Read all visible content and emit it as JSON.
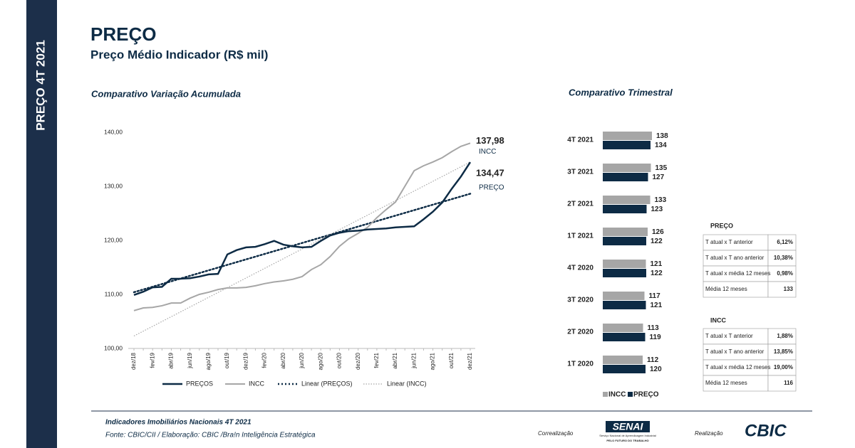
{
  "sidebar": "PREÇO 4T 2021",
  "header": {
    "title": "PREÇO",
    "subtitle": "Preço Médio Indicador (R$ mil)"
  },
  "chart_data": [
    {
      "type": "line",
      "title": "Comparativo Variação Acumulada",
      "categories": [
        "dez/18",
        null,
        "fev/19",
        null,
        "abr/19",
        null,
        "jun/19",
        null,
        "ago/19",
        null,
        "out/19",
        null,
        "dez/19",
        null,
        "fev/20",
        null,
        "abr/20",
        null,
        "jun/20",
        null,
        "ago/20",
        null,
        "out/20",
        null,
        "dez/20",
        null,
        "fev/21",
        null,
        "abr/21",
        null,
        "jun/21",
        null,
        "ago/21",
        null,
        "out/21",
        null,
        "dez/21"
      ],
      "series": [
        {
          "name": "PREÇOS",
          "color": "#0d2b45",
          "values": [
            109.9,
            110.5,
            111.3,
            111.4,
            112.9,
            112.9,
            113.0,
            113.3,
            113.7,
            113.8,
            117.4,
            118.2,
            118.7,
            118.8,
            119.3,
            119.9,
            119.2,
            118.9,
            118.7,
            118.8,
            119.9,
            120.9,
            121.4,
            121.7,
            121.8,
            122.0,
            122.1,
            122.2,
            122.4,
            122.5,
            122.6,
            123.9,
            125.3,
            127.0,
            129.5,
            131.8,
            134.47
          ]
        },
        {
          "name": "INCC",
          "color": "#a6a6a6",
          "values": [
            107.0,
            107.5,
            107.6,
            107.9,
            108.4,
            108.4,
            109.3,
            110.0,
            110.4,
            110.9,
            111.2,
            111.2,
            111.3,
            111.6,
            112.0,
            112.3,
            112.5,
            112.8,
            113.3,
            114.6,
            115.5,
            117.0,
            118.9,
            120.3,
            121.3,
            122.4,
            124.2,
            125.7,
            127.1,
            130.0,
            132.9,
            133.8,
            134.5,
            135.3,
            136.4,
            137.4,
            137.98
          ]
        }
      ],
      "trendlines": [
        {
          "name": "Linear (PREÇOS)",
          "series": 0,
          "color": "#0d2b45"
        },
        {
          "name": "Linear (INCC)",
          "series": 1,
          "color": "#a6a6a6"
        }
      ],
      "annotations": [
        {
          "label": "137,98",
          "text": "INCC",
          "series": 1
        },
        {
          "label": "134,47",
          "text": "PREÇO",
          "series": 0
        }
      ],
      "ylim": [
        100,
        140
      ],
      "yticks": [
        {
          "value": 100,
          "label": "100,00"
        },
        {
          "value": 110,
          "label": "110,00"
        },
        {
          "value": 120,
          "label": "120,00"
        },
        {
          "value": 130,
          "label": "130,00"
        },
        {
          "value": 140,
          "label": "140,00"
        }
      ],
      "grid": false,
      "legend": "bottom"
    },
    {
      "type": "hbar",
      "title": "Comparativo Trimestral",
      "categories": [
        "4T 2021",
        "3T 2021",
        "2T 2021",
        "1T 2021",
        "4T 2020",
        "3T 2020",
        "2T 2020",
        "1T 2020"
      ],
      "series": [
        {
          "name": "INCC",
          "color": "#a6a6a6",
          "values": [
            138,
            135,
            133,
            126,
            121,
            117,
            113,
            112
          ]
        },
        {
          "name": "PREÇO",
          "color": "#0d2b45",
          "values": [
            134,
            127,
            123,
            122,
            122,
            121,
            119,
            120
          ]
        }
      ],
      "legend": "bottom"
    }
  ],
  "tables": [
    {
      "title": "PREÇO",
      "rows": [
        [
          "T atual x T anterior",
          "6,12%"
        ],
        [
          "T atual x T ano anterior",
          "10,38%"
        ],
        [
          "T atual x média 12 meses",
          "0,98%"
        ],
        [
          "Média 12 meses",
          "133"
        ]
      ]
    },
    {
      "title": "INCC",
      "rows": [
        [
          "T atual x T anterior",
          "1,88%"
        ],
        [
          "T atual x T ano anterior",
          "13,85%"
        ],
        [
          "T atual x média 12 meses",
          "19,00%"
        ],
        [
          "Média 12 meses",
          "116"
        ]
      ]
    }
  ],
  "footer": {
    "line1": "Indicadores Imobiliários Nacionais 4T 2021",
    "line2": "Fonte: CBIC/CII / Elaboração: CBIC /Bra!n Inteligência Estratégica",
    "coreal": "Correalização",
    "senai": "SENAI",
    "senai_sub": "Serviço Nacional de Aprendizagem Industrial",
    "senai_tag": "PELO FUTURO DO TRABALHO",
    "real": "Realização",
    "cbic": "CBIC"
  }
}
